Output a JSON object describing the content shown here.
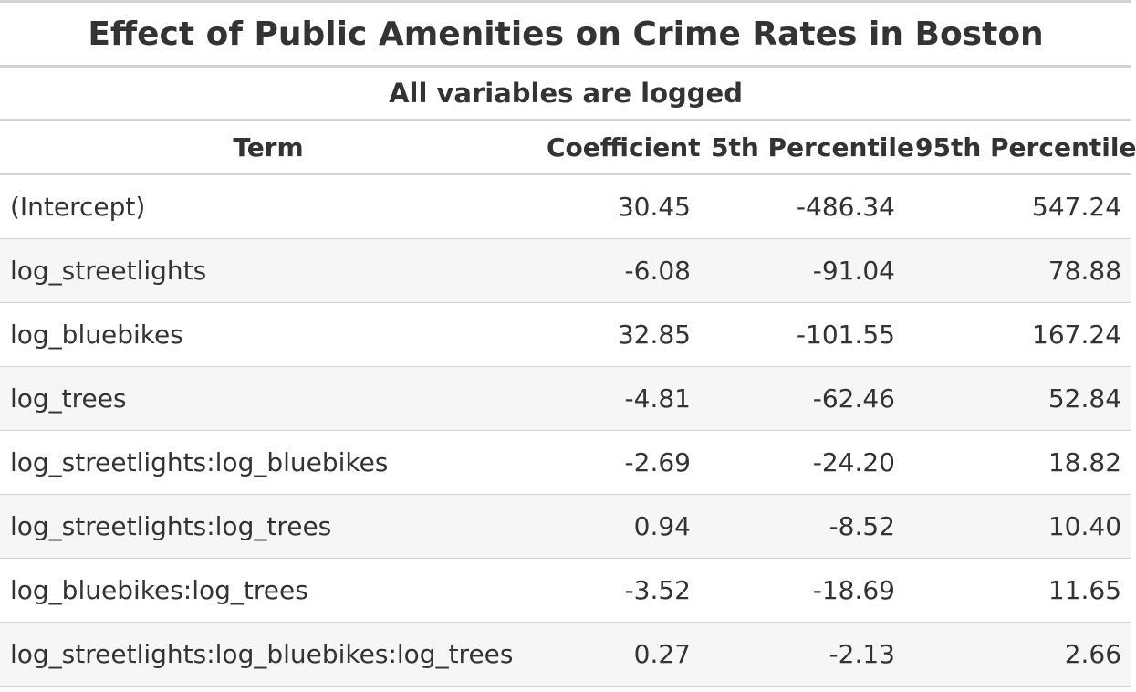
{
  "table": {
    "title": "Effect of Public Amenities on Crime Rates in Boston",
    "subtitle": "All variables are logged",
    "columns": [
      "Term",
      "Coefficient",
      "5th Percentile",
      "95th Percentile"
    ],
    "rows": [
      [
        "(Intercept)",
        "30.45",
        "-486.34",
        "547.24"
      ],
      [
        "log_streetlights",
        "-6.08",
        "-91.04",
        "78.88"
      ],
      [
        "log_bluebikes",
        "32.85",
        "-101.55",
        "167.24"
      ],
      [
        "log_trees",
        "-4.81",
        "-62.46",
        "52.84"
      ],
      [
        "log_streetlights:log_bluebikes",
        "-2.69",
        "-24.20",
        "18.82"
      ],
      [
        "log_streetlights:log_trees",
        "0.94",
        "-8.52",
        "10.40"
      ],
      [
        "log_bluebikes:log_trees",
        "-3.52",
        "-18.69",
        "11.65"
      ],
      [
        "log_streetlights:log_bluebikes:log_trees",
        "0.27",
        "-2.13",
        "2.66"
      ]
    ]
  },
  "colors": {
    "text": "#333333",
    "border": "#d3d3d3",
    "stripe": "#f6f6f6",
    "background": "#ffffff"
  }
}
